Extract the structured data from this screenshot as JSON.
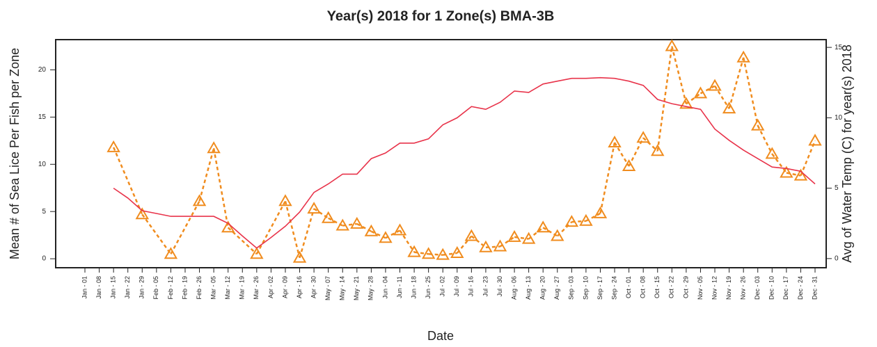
{
  "chart_data": {
    "type": "line",
    "title": "Year(s) 2018  for  1  Zone(s)  BMA-3B",
    "x_label": "Date",
    "y_label": "Mean # of Sea Lice Per Fish per Zone",
    "y2_label": "Avg of Water Temp (C) for year(s) 2018",
    "categories": [
      "Jan - 01",
      "Jan - 08",
      "Jan - 15",
      "Jan - 22",
      "Jan - 29",
      "Feb - 05",
      "Feb - 12",
      "Feb - 19",
      "Feb - 26",
      "Mar - 05",
      "Mar - 12",
      "Mar - 19",
      "Mar - 26",
      "Apr - 02",
      "Apr - 09",
      "Apr - 16",
      "Apr - 30",
      "May - 07",
      "May - 14",
      "May - 21",
      "May - 28",
      "Jun - 04",
      "Jun - 11",
      "Jun - 18",
      "Jun - 25",
      "Jul - 02",
      "Jul - 09",
      "Jul - 16",
      "Jul - 23",
      "Jul - 30",
      "Aug - 06",
      "Aug - 13",
      "Aug - 20",
      "Aug - 27",
      "Sep - 03",
      "Sep - 10",
      "Sep - 17",
      "Sep - 24",
      "Oct - 01",
      "Oct - 08",
      "Oct - 15",
      "Oct - 22",
      "Oct - 29",
      "Nov - 05",
      "Nov - 12",
      "Nov - 19",
      "Nov - 26",
      "Dec - 03",
      "Dec - 10",
      "Dec - 17",
      "Dec - 24",
      "Dec - 31"
    ],
    "series": [
      {
        "color": "#f08c1e",
        "marker": "triangle",
        "dashed": true,
        "values": [
          null,
          null,
          11.8,
          null,
          4.7,
          null,
          0.5,
          null,
          6.1,
          11.7,
          3.3,
          null,
          0.5,
          null,
          6.1,
          0.1,
          5.3,
          4.3,
          3.5,
          3.7,
          2.9,
          2.2,
          3.0,
          0.7,
          0.5,
          0.4,
          0.6,
          2.4,
          1.2,
          1.3,
          2.3,
          2.1,
          3.3,
          2.4,
          3.9,
          4.0,
          4.8,
          12.3,
          9.8,
          12.8,
          11.4,
          22.5,
          16.4,
          17.5,
          18.3,
          15.9,
          21.3,
          14.1,
          11.1,
          9.1,
          8.8,
          12.5
        ]
      },
      {
        "color": "#e8334a",
        "axis": "y2",
        "values": [
          null,
          null,
          5.0,
          4.3,
          3.4,
          3.2,
          3.0,
          3.0,
          3.0,
          3.0,
          2.5,
          1.6,
          0.75,
          1.5,
          2.3,
          3.3,
          4.7,
          5.3,
          6.0,
          6.0,
          7.1,
          7.5,
          8.2,
          8.2,
          8.5,
          9.5,
          10.0,
          10.8,
          10.6,
          11.1,
          11.9,
          11.8,
          12.4,
          12.6,
          12.8,
          12.8,
          12.85,
          12.8,
          12.6,
          12.3,
          11.3,
          11.0,
          10.8,
          10.6,
          9.2,
          8.4,
          7.7,
          7.1,
          6.5,
          6.4,
          6.2,
          5.3
        ]
      }
    ],
    "ylim": [
      -0.95,
      23.2
    ],
    "yticks": [
      0,
      5,
      10,
      15,
      20
    ],
    "y2lim": [
      -0.65,
      15.55
    ],
    "y2ticks": [
      0,
      5,
      10,
      15
    ],
    "y2_color": "#e8334a"
  }
}
